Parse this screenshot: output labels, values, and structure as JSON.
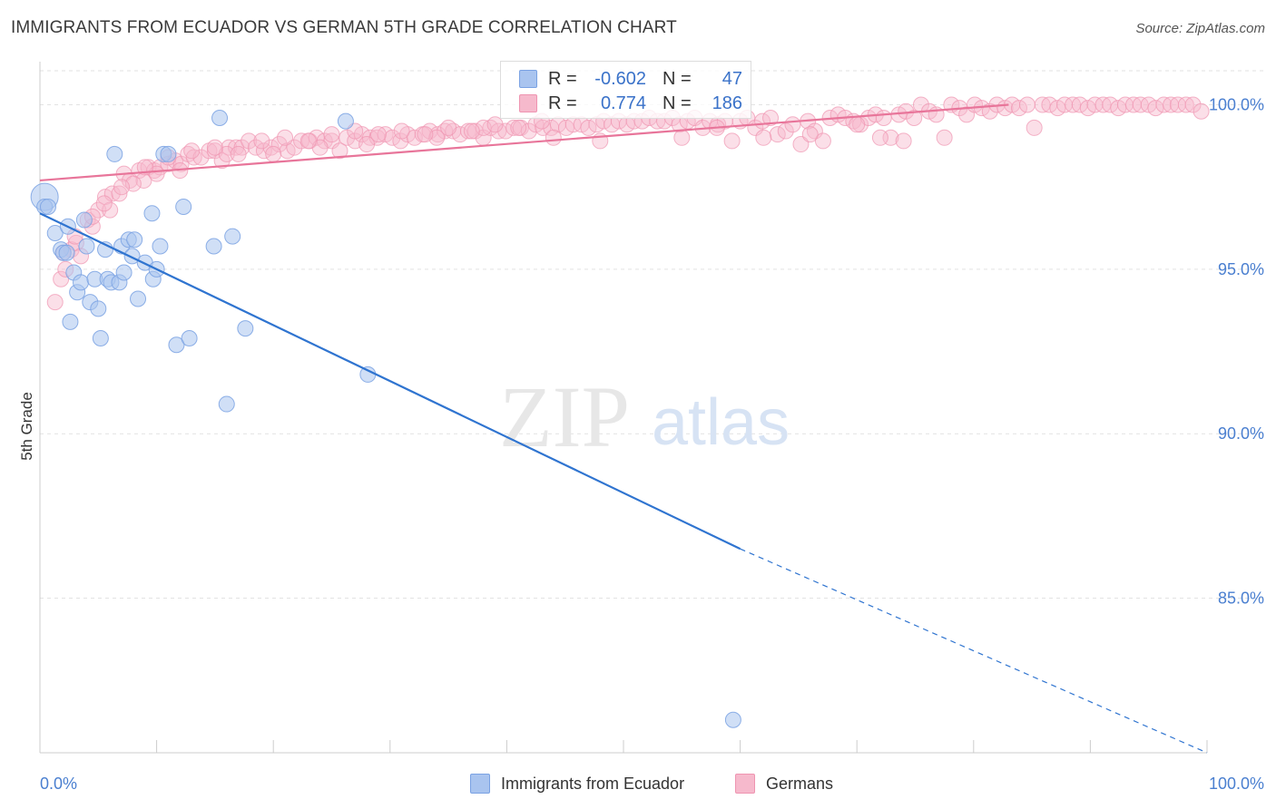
{
  "title": "IMMIGRANTS FROM ECUADOR VS GERMAN 5TH GRADE CORRELATION CHART",
  "source": "Source: ZipAtlas.com",
  "watermark": {
    "zip": "ZIP",
    "atlas": "atlas"
  },
  "legend": {
    "series1": {
      "r_label": "R =",
      "r_value": "-0.602",
      "n_label": "N =",
      "n_value": "47"
    },
    "series2": {
      "r_label": "R =",
      "r_value": "0.774",
      "n_label": "N =",
      "n_value": "186"
    }
  },
  "bottom_legend": {
    "series1": "Immigrants from Ecuador",
    "series2": "Germans"
  },
  "colors": {
    "blue_fill": "#a9c4ef",
    "blue_stroke": "#7aa2e3",
    "blue_line": "#2f74d0",
    "pink_fill": "#f6b9cc",
    "pink_stroke": "#ef94b1",
    "pink_line": "#e8759a",
    "axis_text": "#4a7fd0",
    "grid": "#e2e2e2"
  },
  "chart_data": {
    "type": "scatter",
    "title": "IMMIGRANTS FROM ECUADOR VS GERMAN 5TH GRADE CORRELATION CHART",
    "xlabel": "",
    "ylabel": "5th Grade",
    "xlim": [
      0,
      100
    ],
    "ylim": [
      80.3,
      101.2
    ],
    "x_tick_labels": [
      "0.0%",
      "100.0%"
    ],
    "y_ticks": [
      85,
      90,
      95,
      100
    ],
    "y_tick_labels": [
      "85.0%",
      "90.0%",
      "95.0%",
      "100.0%"
    ],
    "grid": true,
    "series": [
      {
        "name": "Immigrants from Ecuador",
        "r": -0.602,
        "n": 47,
        "trend": {
          "x0": 0,
          "y0": 96.7,
          "x1": 60,
          "y1": 86.5,
          "dashed_to_x": 100,
          "dashed_to_y": 80.3
        },
        "points": [
          [
            0.4,
            97.2
          ],
          [
            0.4,
            96.9
          ],
          [
            0.7,
            96.9
          ],
          [
            1.3,
            96.1
          ],
          [
            1.8,
            95.6
          ],
          [
            2.0,
            95.5
          ],
          [
            2.3,
            95.5
          ],
          [
            2.4,
            96.3
          ],
          [
            2.6,
            93.4
          ],
          [
            2.9,
            94.9
          ],
          [
            3.2,
            94.3
          ],
          [
            3.5,
            94.6
          ],
          [
            3.8,
            96.5
          ],
          [
            4.0,
            95.7
          ],
          [
            4.3,
            94.0
          ],
          [
            4.7,
            94.7
          ],
          [
            5.0,
            93.8
          ],
          [
            5.2,
            92.9
          ],
          [
            5.6,
            95.6
          ],
          [
            5.8,
            94.7
          ],
          [
            6.1,
            94.6
          ],
          [
            6.4,
            98.5
          ],
          [
            6.8,
            94.6
          ],
          [
            7.0,
            95.7
          ],
          [
            7.2,
            94.9
          ],
          [
            7.6,
            95.9
          ],
          [
            7.9,
            95.4
          ],
          [
            8.1,
            95.9
          ],
          [
            8.4,
            94.1
          ],
          [
            9.0,
            95.2
          ],
          [
            9.6,
            96.7
          ],
          [
            9.7,
            94.7
          ],
          [
            10.0,
            95.0
          ],
          [
            10.3,
            95.7
          ],
          [
            10.6,
            98.5
          ],
          [
            11.0,
            98.5
          ],
          [
            11.7,
            92.7
          ],
          [
            12.3,
            96.9
          ],
          [
            12.8,
            92.9
          ],
          [
            14.9,
            95.7
          ],
          [
            15.4,
            99.6
          ],
          [
            16.0,
            90.9
          ],
          [
            16.5,
            96.0
          ],
          [
            17.6,
            93.2
          ],
          [
            26.2,
            99.5
          ],
          [
            28.1,
            91.8
          ],
          [
            59.4,
            81.3
          ]
        ]
      },
      {
        "name": "Germans",
        "r": 0.774,
        "n": 186,
        "trend": {
          "x0": 0,
          "y0": 97.7,
          "x1": 83,
          "y1": 100.0
        },
        "points": [
          [
            1.3,
            94.0
          ],
          [
            1.8,
            94.7
          ],
          [
            2.2,
            95.0
          ],
          [
            2.7,
            95.6
          ],
          [
            3.1,
            95.8
          ],
          [
            3.5,
            95.4
          ],
          [
            4.1,
            96.5
          ],
          [
            4.5,
            96.3
          ],
          [
            5.0,
            96.8
          ],
          [
            5.6,
            97.2
          ],
          [
            6.2,
            97.3
          ],
          [
            6.8,
            97.3
          ],
          [
            7.2,
            97.9
          ],
          [
            7.7,
            97.7
          ],
          [
            8.5,
            98.0
          ],
          [
            8.9,
            97.7
          ],
          [
            9.3,
            98.1
          ],
          [
            9.8,
            98.0
          ],
          [
            10.3,
            98.1
          ],
          [
            11.0,
            98.2
          ],
          [
            11.6,
            98.3
          ],
          [
            12.1,
            98.2
          ],
          [
            12.7,
            98.5
          ],
          [
            13.2,
            98.4
          ],
          [
            13.8,
            98.4
          ],
          [
            14.5,
            98.6
          ],
          [
            15.0,
            98.6
          ],
          [
            15.6,
            98.3
          ],
          [
            16.2,
            98.7
          ],
          [
            16.8,
            98.7
          ],
          [
            17.3,
            98.7
          ],
          [
            17.9,
            98.9
          ],
          [
            18.5,
            98.7
          ],
          [
            19.2,
            98.6
          ],
          [
            19.8,
            98.7
          ],
          [
            20.5,
            98.8
          ],
          [
            21.2,
            98.6
          ],
          [
            21.8,
            98.7
          ],
          [
            22.4,
            98.9
          ],
          [
            23.1,
            98.9
          ],
          [
            23.7,
            99.0
          ],
          [
            24.4,
            98.9
          ],
          [
            25.0,
            98.9
          ],
          [
            25.7,
            98.6
          ],
          [
            26.3,
            99.0
          ],
          [
            27.0,
            98.9
          ],
          [
            27.6,
            99.1
          ],
          [
            28.3,
            99.0
          ],
          [
            28.9,
            99.0
          ],
          [
            29.6,
            99.1
          ],
          [
            30.2,
            99.0
          ],
          [
            30.9,
            98.9
          ],
          [
            31.5,
            99.1
          ],
          [
            32.1,
            99.0
          ],
          [
            32.8,
            99.1
          ],
          [
            33.4,
            99.2
          ],
          [
            34.1,
            99.1
          ],
          [
            34.7,
            99.2
          ],
          [
            35.4,
            99.2
          ],
          [
            36.0,
            99.1
          ],
          [
            36.7,
            99.2
          ],
          [
            37.3,
            99.2
          ],
          [
            38.0,
            99.0
          ],
          [
            38.6,
            99.3
          ],
          [
            39.3,
            99.2
          ],
          [
            39.9,
            99.2
          ],
          [
            40.6,
            99.3
          ],
          [
            41.2,
            99.3
          ],
          [
            41.9,
            99.2
          ],
          [
            42.5,
            99.4
          ],
          [
            43.1,
            99.3
          ],
          [
            43.8,
            99.3
          ],
          [
            44.4,
            99.4
          ],
          [
            45.1,
            99.3
          ],
          [
            45.7,
            99.4
          ],
          [
            46.4,
            99.4
          ],
          [
            47.0,
            99.3
          ],
          [
            47.7,
            99.4
          ],
          [
            48.3,
            99.5
          ],
          [
            49.0,
            99.4
          ],
          [
            49.6,
            99.5
          ],
          [
            50.3,
            99.4
          ],
          [
            50.9,
            99.5
          ],
          [
            51.6,
            99.5
          ],
          [
            52.2,
            99.6
          ],
          [
            52.9,
            99.5
          ],
          [
            53.5,
            99.5
          ],
          [
            54.2,
            99.6
          ],
          [
            54.8,
            99.4
          ],
          [
            55.5,
            99.5
          ],
          [
            56.1,
            99.6
          ],
          [
            56.8,
            99.3
          ],
          [
            57.4,
            99.5
          ],
          [
            58.1,
            99.4
          ],
          [
            58.7,
            99.5
          ],
          [
            59.3,
            98.9
          ],
          [
            60.0,
            99.5
          ],
          [
            60.6,
            99.6
          ],
          [
            61.3,
            99.3
          ],
          [
            61.9,
            99.5
          ],
          [
            62.6,
            99.6
          ],
          [
            63.2,
            99.1
          ],
          [
            63.9,
            99.2
          ],
          [
            64.5,
            99.4
          ],
          [
            65.2,
            98.8
          ],
          [
            65.8,
            99.5
          ],
          [
            66.4,
            99.2
          ],
          [
            67.1,
            98.9
          ],
          [
            67.7,
            99.6
          ],
          [
            68.4,
            99.7
          ],
          [
            69.0,
            99.6
          ],
          [
            69.7,
            99.5
          ],
          [
            70.3,
            99.4
          ],
          [
            71.0,
            99.6
          ],
          [
            71.6,
            99.7
          ],
          [
            72.3,
            99.6
          ],
          [
            72.9,
            99.0
          ],
          [
            73.6,
            99.7
          ],
          [
            74.2,
            99.8
          ],
          [
            74.9,
            99.6
          ],
          [
            75.5,
            100.0
          ],
          [
            76.2,
            99.8
          ],
          [
            76.8,
            99.7
          ],
          [
            77.5,
            99.0
          ],
          [
            78.1,
            100.0
          ],
          [
            78.8,
            99.9
          ],
          [
            79.4,
            99.7
          ],
          [
            80.1,
            100.0
          ],
          [
            80.7,
            99.9
          ],
          [
            81.4,
            99.8
          ],
          [
            82.0,
            100.0
          ],
          [
            82.7,
            99.9
          ],
          [
            83.3,
            100.0
          ],
          [
            83.9,
            99.9
          ],
          [
            84.6,
            100.0
          ],
          [
            85.2,
            99.3
          ],
          [
            85.9,
            100.0
          ],
          [
            86.5,
            100.0
          ],
          [
            87.2,
            99.9
          ],
          [
            87.8,
            100.0
          ],
          [
            88.5,
            100.0
          ],
          [
            89.1,
            100.0
          ],
          [
            89.8,
            99.9
          ],
          [
            90.4,
            100.0
          ],
          [
            91.1,
            100.0
          ],
          [
            91.7,
            100.0
          ],
          [
            92.4,
            99.9
          ],
          [
            93.0,
            100.0
          ],
          [
            93.7,
            100.0
          ],
          [
            94.3,
            100.0
          ],
          [
            95.0,
            100.0
          ],
          [
            95.6,
            99.9
          ],
          [
            96.3,
            100.0
          ],
          [
            96.9,
            100.0
          ],
          [
            97.5,
            100.0
          ],
          [
            98.2,
            100.0
          ],
          [
            98.8,
            100.0
          ],
          [
            99.5,
            99.8
          ],
          [
            72.0,
            99.0
          ],
          [
            74.0,
            98.9
          ],
          [
            70.0,
            99.4
          ],
          [
            66.0,
            99.1
          ],
          [
            62.0,
            99.0
          ],
          [
            58.0,
            99.3
          ],
          [
            55.0,
            99.0
          ],
          [
            48.0,
            98.9
          ],
          [
            44.0,
            99.0
          ],
          [
            38.0,
            99.3
          ],
          [
            34.0,
            99.0
          ],
          [
            28.0,
            98.8
          ],
          [
            24.0,
            98.7
          ],
          [
            20.0,
            98.5
          ],
          [
            16.0,
            98.5
          ],
          [
            12.0,
            98.0
          ],
          [
            10.0,
            97.9
          ],
          [
            8.0,
            97.6
          ],
          [
            6.0,
            96.8
          ],
          [
            4.5,
            96.6
          ],
          [
            3.0,
            96.0
          ],
          [
            2.0,
            95.5
          ],
          [
            5.5,
            97.0
          ],
          [
            7.0,
            97.5
          ],
          [
            9.0,
            98.1
          ],
          [
            11.0,
            98.4
          ],
          [
            13.0,
            98.6
          ],
          [
            15.0,
            98.7
          ],
          [
            17.0,
            98.5
          ],
          [
            19.0,
            98.9
          ],
          [
            21.0,
            99.0
          ],
          [
            23.0,
            98.9
          ],
          [
            25.0,
            99.1
          ],
          [
            27.0,
            99.2
          ],
          [
            29.0,
            99.1
          ],
          [
            31.0,
            99.2
          ],
          [
            33.0,
            99.1
          ],
          [
            35.0,
            99.3
          ],
          [
            37.0,
            99.2
          ],
          [
            39.0,
            99.4
          ],
          [
            41.0,
            99.3
          ],
          [
            43.0,
            99.5
          ]
        ]
      }
    ]
  }
}
